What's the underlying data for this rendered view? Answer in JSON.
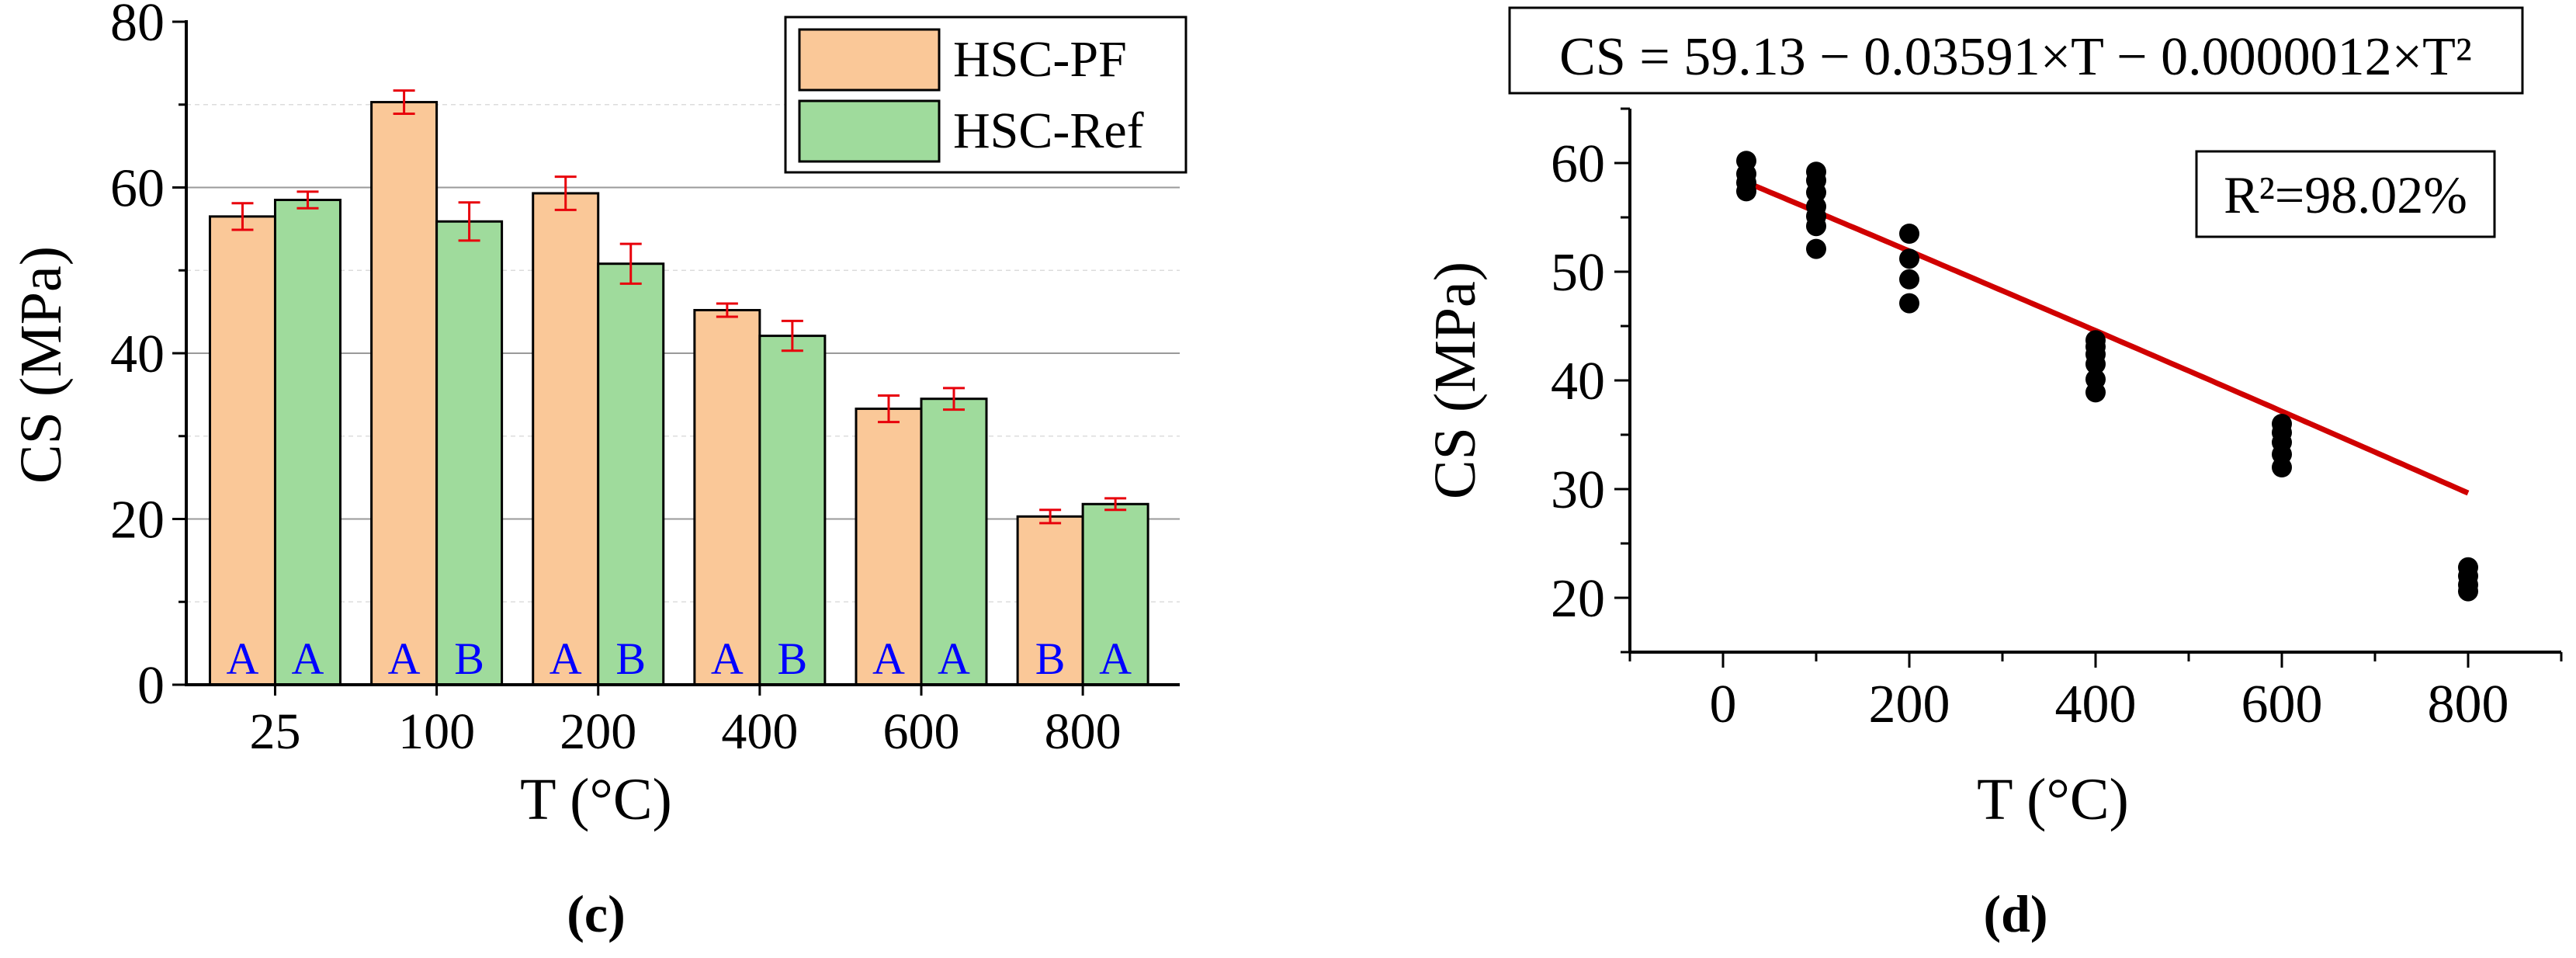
{
  "chart_data": [
    {
      "type": "bar",
      "panel_label": "c",
      "title": "",
      "xlabel": "T (°C)",
      "ylabel": "CS (MPa)",
      "ylim": [
        0,
        80
      ],
      "yticks": [
        "0",
        "20",
        "40",
        "60",
        "80"
      ],
      "categories": [
        "25",
        "100",
        "200",
        "400",
        "600",
        "800"
      ],
      "legend_position": "top-right",
      "grid": "horizontal",
      "series": [
        {
          "name": "HSC-PF",
          "color": "#FAC898",
          "values": [
            56.5,
            70.3,
            59.3,
            45.2,
            33.3,
            20.3
          ],
          "errors": [
            1.6,
            1.4,
            2.0,
            0.8,
            1.6,
            0.8
          ],
          "letters": [
            "A",
            "A",
            "A",
            "A",
            "A",
            "B"
          ]
        },
        {
          "name": "HSC-Ref",
          "color": "#9FDB9C",
          "values": [
            58.5,
            55.9,
            50.8,
            42.1,
            34.5,
            21.8
          ],
          "errors": [
            1.0,
            2.3,
            2.4,
            1.8,
            1.3,
            0.7
          ],
          "letters": [
            "A",
            "B",
            "B",
            "B",
            "A",
            "A"
          ]
        }
      ],
      "error_bar_color": "#E8000B",
      "letter_color": "#0000FF"
    },
    {
      "type": "scatter",
      "panel_label": "d",
      "title": "CS = 59.13 − 0.03591×T − 0.0000012×T²",
      "annotation": "R²=98.02%",
      "xlabel": "T (°C)",
      "ylabel": "CS (MPa)",
      "xlim": [
        -100,
        900
      ],
      "ylim": [
        15,
        65
      ],
      "xticks": [
        "0",
        "200",
        "400",
        "600",
        "800"
      ],
      "yticks": [
        "20",
        "30",
        "40",
        "50",
        "60"
      ],
      "points": [
        {
          "x": 25,
          "y": 57.4
        },
        {
          "x": 25,
          "y": 58.2
        },
        {
          "x": 25,
          "y": 59.0
        },
        {
          "x": 25,
          "y": 60.2
        },
        {
          "x": 100,
          "y": 52.1
        },
        {
          "x": 100,
          "y": 54.2
        },
        {
          "x": 100,
          "y": 55.1
        },
        {
          "x": 100,
          "y": 56.0
        },
        {
          "x": 100,
          "y": 57.3
        },
        {
          "x": 100,
          "y": 58.4
        },
        {
          "x": 100,
          "y": 59.2
        },
        {
          "x": 200,
          "y": 47.1
        },
        {
          "x": 200,
          "y": 49.3
        },
        {
          "x": 200,
          "y": 51.2
        },
        {
          "x": 200,
          "y": 53.5
        },
        {
          "x": 400,
          "y": 38.9
        },
        {
          "x": 400,
          "y": 40.1
        },
        {
          "x": 400,
          "y": 41.5
        },
        {
          "x": 400,
          "y": 42.4
        },
        {
          "x": 400,
          "y": 43.1
        },
        {
          "x": 400,
          "y": 43.7
        },
        {
          "x": 600,
          "y": 32.0
        },
        {
          "x": 600,
          "y": 33.2
        },
        {
          "x": 600,
          "y": 34.3
        },
        {
          "x": 600,
          "y": 35.2
        },
        {
          "x": 600,
          "y": 36.0
        },
        {
          "x": 800,
          "y": 20.6
        },
        {
          "x": 800,
          "y": 21.2
        },
        {
          "x": 800,
          "y": 22.0
        },
        {
          "x": 800,
          "y": 22.8
        }
      ],
      "fit": {
        "a": 59.13,
        "b": -0.03591,
        "c": -1.2e-06,
        "x_from": 25,
        "x_to": 800,
        "color": "#D00000"
      },
      "point_color": "#000000"
    }
  ]
}
